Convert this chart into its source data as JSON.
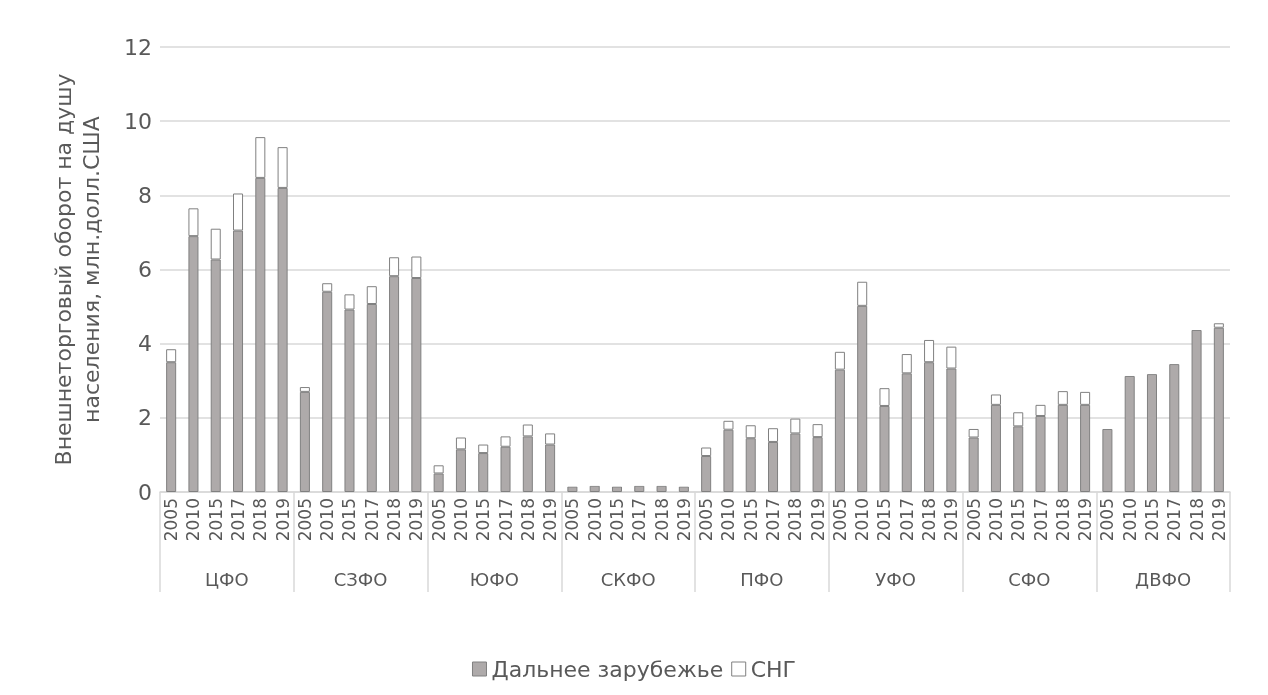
{
  "chart_data": {
    "type": "bar",
    "stacked": true,
    "ylabel": "Внешнеторговый оборот на душу\nнаселения, млн.долл.США",
    "categories": [
      "2005",
      "2010",
      "2015",
      "2017",
      "2018",
      "2019",
      "2005",
      "2010",
      "2015",
      "2017",
      "2018",
      "2019",
      "2005",
      "2010",
      "2015",
      "2017",
      "2018",
      "2019",
      "2005",
      "2010",
      "2015",
      "2017",
      "2018",
      "2019",
      "2005",
      "2010",
      "2015",
      "2017",
      "2018",
      "2019",
      "2005",
      "2010",
      "2015",
      "2017",
      "2018",
      "2019",
      "2005",
      "2010",
      "2015",
      "2017",
      "2018",
      "2019",
      "2005",
      "2010",
      "2015",
      "2017",
      "2018",
      "2019"
    ],
    "annotations": [
      "ЦФО",
      "СЗФО",
      "ЮФО",
      "СКФО",
      "ПФО",
      "УФО",
      "СФО",
      "ДВФО"
    ],
    "series": [
      {
        "name": "Дальнее зарубежье",
        "color": "#aeaaaa",
        "values": [
          3.5,
          6.9,
          6.27,
          7.05,
          8.47,
          8.2,
          2.7,
          5.4,
          4.92,
          5.07,
          5.82,
          5.77,
          0.5,
          1.15,
          1.05,
          1.22,
          1.5,
          1.28,
          0.15,
          0.17,
          0.15,
          0.17,
          0.17,
          0.15,
          0.97,
          1.68,
          1.45,
          1.35,
          1.58,
          1.48,
          3.3,
          5.02,
          2.32,
          3.2,
          3.5,
          3.33,
          1.47,
          2.35,
          1.77,
          2.05,
          2.35,
          2.35,
          1.7,
          3.13,
          3.18,
          3.45,
          4.37,
          4.43
        ]
      },
      {
        "name": "СНГ",
        "color": "#ffffff",
        "values": [
          0.35,
          0.75,
          0.83,
          1.0,
          1.1,
          1.1,
          0.13,
          0.23,
          0.41,
          0.48,
          0.51,
          0.58,
          0.22,
          0.32,
          0.23,
          0.28,
          0.32,
          0.3,
          0.05,
          0.06,
          0.05,
          0.05,
          0.05,
          0.07,
          0.23,
          0.24,
          0.35,
          0.37,
          0.4,
          0.35,
          0.48,
          0.65,
          0.48,
          0.52,
          0.6,
          0.59,
          0.23,
          0.28,
          0.38,
          0.3,
          0.37,
          0.35,
          0.02,
          0.02,
          0.04,
          0.03,
          0.03,
          0.12
        ]
      }
    ],
    "ylim": [
      0,
      12
    ],
    "yticks": [
      0,
      2,
      4,
      6,
      8,
      10,
      12
    ],
    "grid": "y",
    "legend": "bottom"
  }
}
